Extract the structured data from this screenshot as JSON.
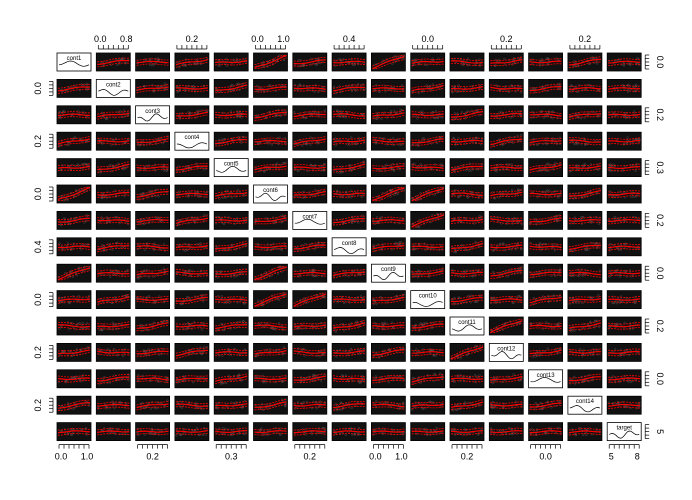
{
  "chart_data": {
    "type": "scatter",
    "subtype": "scatterplot-matrix",
    "title": "",
    "n_vars": 15,
    "diagonal": "density",
    "diagonal_labels": [
      "cont1",
      "cont2",
      "cont3",
      "cont4",
      "cont5",
      "cont6",
      "cont7",
      "cont8",
      "cont9",
      "cont10",
      "cont11",
      "cont12",
      "cont13",
      "cont14",
      "target"
    ],
    "colors": {
      "points": "#000000",
      "smoother": "#ff0000",
      "frame": "#000000"
    },
    "axes": {
      "top": [
        {
          "col": 1,
          "labels": [
            "0.0",
            "0.8"
          ]
        },
        {
          "col": 3,
          "labels": [
            "0.2"
          ]
        },
        {
          "col": 5,
          "labels": [
            "0.0",
            "1.0"
          ]
        },
        {
          "col": 7,
          "labels": [
            "0.4"
          ]
        },
        {
          "col": 9,
          "labels": [
            "0.0"
          ]
        },
        {
          "col": 11,
          "labels": [
            "0.2"
          ]
        },
        {
          "col": 13,
          "labels": [
            "0.2"
          ]
        }
      ],
      "bottom": [
        {
          "col": 0,
          "labels": [
            "0.0",
            "1.0"
          ]
        },
        {
          "col": 2,
          "labels": [
            "0.2"
          ]
        },
        {
          "col": 4,
          "labels": [
            "0.3"
          ]
        },
        {
          "col": 6,
          "labels": [
            "0.2"
          ]
        },
        {
          "col": 8,
          "labels": [
            "0.0",
            "1.0"
          ]
        },
        {
          "col": 10,
          "labels": [
            "0.2"
          ]
        },
        {
          "col": 12,
          "labels": [
            "0.0"
          ]
        },
        {
          "col": 14,
          "labels": [
            "5",
            "8"
          ]
        }
      ],
      "left": [
        {
          "row": 1,
          "labels": [
            "0.0"
          ]
        },
        {
          "row": 3,
          "labels": [
            "0.2"
          ]
        },
        {
          "row": 5,
          "labels": [
            "0.0"
          ]
        },
        {
          "row": 7,
          "labels": [
            "0.4"
          ]
        },
        {
          "row": 9,
          "labels": [
            "0.0"
          ]
        },
        {
          "row": 11,
          "labels": [
            "0.2"
          ]
        },
        {
          "row": 13,
          "labels": [
            "0.2"
          ]
        }
      ],
      "right": [
        {
          "row": 0,
          "labels": [
            "0.0"
          ]
        },
        {
          "row": 2,
          "labels": [
            "0.2"
          ]
        },
        {
          "row": 4,
          "labels": [
            "0.3"
          ]
        },
        {
          "row": 6,
          "labels": [
            "0.2"
          ]
        },
        {
          "row": 8,
          "labels": [
            "0.0"
          ]
        },
        {
          "row": 10,
          "labels": [
            "0.2"
          ]
        },
        {
          "row": 12,
          "labels": [
            "0.0"
          ]
        },
        {
          "row": 14,
          "labels": [
            "5"
          ]
        }
      ]
    }
  }
}
